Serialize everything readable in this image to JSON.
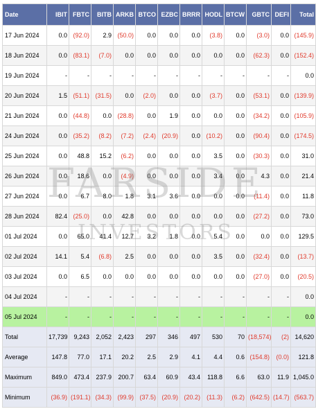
{
  "columns": [
    "Date",
    "IBIT",
    "FBTC",
    "BITB",
    "ARKB",
    "BTCO",
    "EZBC",
    "BRRR",
    "HODL",
    "BTCW",
    "GBTC",
    "DEFI",
    "Total"
  ],
  "rows": [
    {
      "kind": "data",
      "cells": [
        "17 Jun 2024",
        "0.0",
        "(92.0)",
        "2.9",
        "(50.0)",
        "0.0",
        "0.0",
        "0.0",
        "(3.8)",
        "0.0",
        "(3.0)",
        "0.0",
        "(145.9)"
      ]
    },
    {
      "kind": "data",
      "cells": [
        "18 Jun 2024",
        "0.0",
        "(83.1)",
        "(7.0)",
        "0.0",
        "0.0",
        "0.0",
        "0.0",
        "0.0",
        "0.0",
        "(62.3)",
        "0.0",
        "(152.4)"
      ]
    },
    {
      "kind": "data",
      "cells": [
        "19 Jun 2024",
        "-",
        "-",
        "-",
        "-",
        "-",
        "-",
        "-",
        "-",
        "-",
        "-",
        "-",
        "0.0"
      ]
    },
    {
      "kind": "data",
      "cells": [
        "20 Jun 2024",
        "1.5",
        "(51.1)",
        "(31.5)",
        "0.0",
        "(2.0)",
        "0.0",
        "0.0",
        "(3.7)",
        "0.0",
        "(53.1)",
        "0.0",
        "(139.9)"
      ]
    },
    {
      "kind": "data",
      "cells": [
        "21 Jun 2024",
        "0.0",
        "(44.8)",
        "0.0",
        "(28.8)",
        "0.0",
        "1.9",
        "0.0",
        "0.0",
        "0.0",
        "(34.2)",
        "0.0",
        "(105.9)"
      ]
    },
    {
      "kind": "data",
      "cells": [
        "24 Jun 2024",
        "0.0",
        "(35.2)",
        "(8.2)",
        "(7.2)",
        "(2.4)",
        "(20.9)",
        "0.0",
        "(10.2)",
        "0.0",
        "(90.4)",
        "0.0",
        "(174.5)"
      ]
    },
    {
      "kind": "data",
      "cells": [
        "25 Jun 2024",
        "0.0",
        "48.8",
        "15.2",
        "(6.2)",
        "0.0",
        "0.0",
        "0.0",
        "3.5",
        "0.0",
        "(30.3)",
        "0.0",
        "31.0"
      ]
    },
    {
      "kind": "data",
      "cells": [
        "26 Jun 2024",
        "0.0",
        "18.6",
        "0.0",
        "(4.9)",
        "0.0",
        "0.0",
        "0.0",
        "3.4",
        "0.0",
        "4.3",
        "0.0",
        "21.4"
      ]
    },
    {
      "kind": "data",
      "cells": [
        "27 Jun 2024",
        "0.0",
        "6.7",
        "8.0",
        "1.8",
        "3.1",
        "3.6",
        "0.0",
        "0.0",
        "0.0",
        "(11.4)",
        "0.0",
        "11.8"
      ]
    },
    {
      "kind": "data",
      "cells": [
        "28 Jun 2024",
        "82.4",
        "(25.0)",
        "0.0",
        "42.8",
        "0.0",
        "0.0",
        "0.0",
        "0.0",
        "0.0",
        "(27.2)",
        "0.0",
        "73.0"
      ]
    },
    {
      "kind": "data",
      "cells": [
        "01 Jul 2024",
        "0.0",
        "65.0",
        "41.4",
        "12.7",
        "3.2",
        "1.8",
        "0.0",
        "5.4",
        "0.0",
        "0.0",
        "0.0",
        "129.5"
      ]
    },
    {
      "kind": "data",
      "cells": [
        "02 Jul 2024",
        "14.1",
        "5.4",
        "(6.8)",
        "2.5",
        "0.0",
        "0.0",
        "0.0",
        "3.5",
        "0.0",
        "(32.4)",
        "0.0",
        "(13.7)"
      ]
    },
    {
      "kind": "data",
      "cells": [
        "03 Jul 2024",
        "0.0",
        "6.5",
        "0.0",
        "0.0",
        "0.0",
        "0.0",
        "0.0",
        "0.0",
        "0.0",
        "(27.0)",
        "0.0",
        "(20.5)"
      ]
    },
    {
      "kind": "data",
      "cells": [
        "04 Jul 2024",
        "-",
        "-",
        "-",
        "-",
        "-",
        "-",
        "-",
        "-",
        "-",
        "-",
        "-",
        "0.0"
      ]
    },
    {
      "kind": "highlight",
      "cells": [
        "05 Jul 2024",
        "-",
        "-",
        "-",
        "-",
        "-",
        "-",
        "-",
        "-",
        "-",
        "-",
        "-",
        "0.0"
      ]
    },
    {
      "kind": "stat",
      "cells": [
        "Total",
        "17,739",
        "9,243",
        "2,052",
        "2,423",
        "297",
        "346",
        "497",
        "530",
        "70",
        "(18,574)",
        "(2)",
        "14,620"
      ]
    },
    {
      "kind": "stat",
      "cells": [
        "Average",
        "147.8",
        "77.0",
        "17.1",
        "20.2",
        "2.5",
        "2.9",
        "4.1",
        "4.4",
        "0.6",
        "(154.8)",
        "(0.0)",
        "121.8"
      ]
    },
    {
      "kind": "stat",
      "cells": [
        "Maximum",
        "849.0",
        "473.4",
        "237.9",
        "200.7",
        "63.4",
        "60.9",
        "43.4",
        "118.8",
        "6.6",
        "63.0",
        "11.9",
        "1,045.0"
      ]
    },
    {
      "kind": "stat",
      "cells": [
        "Minimum",
        "(36.9)",
        "(191.1)",
        "(34.3)",
        "(99.9)",
        "(37.5)",
        "(20.9)",
        "(20.2)",
        "(11.3)",
        "(6.2)",
        "(642.5)",
        "(14.7)",
        "(563.7)"
      ]
    }
  ],
  "watermark": {
    "line1": "FARSIDE",
    "line2": "INVESTORS"
  },
  "colors": {
    "header": "#5b6fa6",
    "negative": "#e0392b",
    "highlight": "#b8f2a0",
    "stat": "#e6e9f3"
  }
}
